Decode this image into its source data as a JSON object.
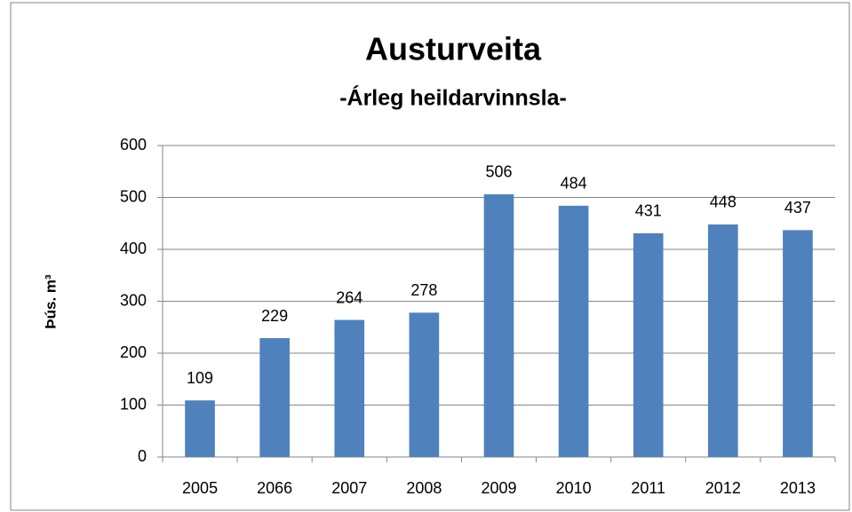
{
  "chart_data": {
    "type": "bar",
    "title": "Austurveita",
    "subtitle": "-Árleg heildarvinnsla-",
    "y_label": "Þús. m³",
    "categories": [
      "2005",
      "2066",
      "2007",
      "2008",
      "2009",
      "2010",
      "2011",
      "2012",
      "2013"
    ],
    "values": [
      109,
      229,
      264,
      278,
      506,
      484,
      431,
      448,
      437
    ],
    "color": "#4f81bd",
    "ylim": [
      0,
      600
    ],
    "yticks": [
      0,
      100,
      200,
      300,
      400,
      500,
      600
    ],
    "grid": true
  }
}
